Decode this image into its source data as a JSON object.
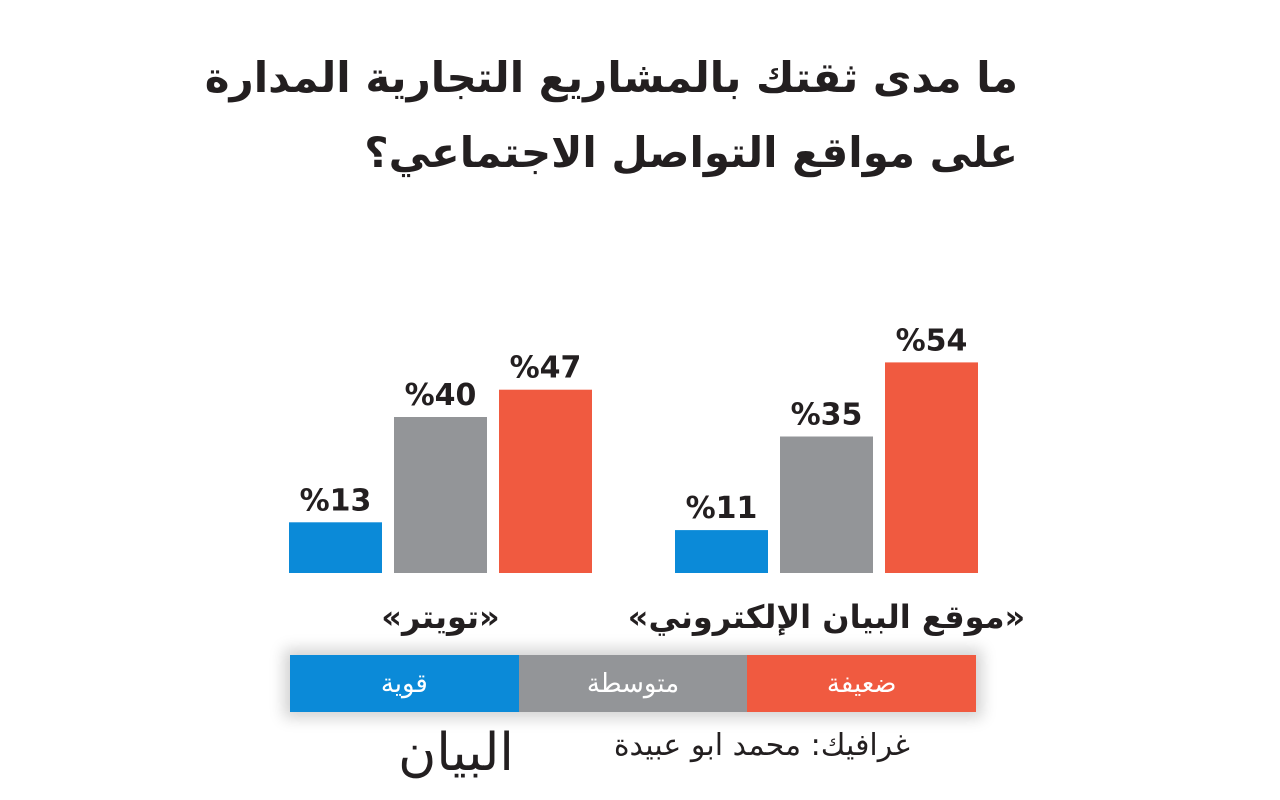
{
  "title": {
    "line1": "ما مدى ثقتك بالمشاريع التجارية المدارة",
    "line2": "على مواقع التواصل الاجتماعي؟"
  },
  "credit": "غرافيك: محمد ابو عبيدة",
  "logo_text": "البيان",
  "colors": {
    "strong": "#0b8ad8",
    "medium": "#939598",
    "weak": "#f05a40"
  },
  "chart_data": {
    "type": "bar",
    "title": "ما مدى ثقتك بالمشاريع التجارية المدارة على مواقع التواصل الاجتماعي؟",
    "categories": [
      "«تويتر»",
      "«موقع البيان الإلكتروني»"
    ],
    "series": [
      {
        "name": "قوية",
        "color": "#0b8ad8",
        "values": [
          13,
          11
        ],
        "labels": [
          "%13",
          "%11"
        ]
      },
      {
        "name": "متوسطة",
        "color": "#939598",
        "values": [
          40,
          35
        ],
        "labels": [
          "%40",
          "%35"
        ]
      },
      {
        "name": "ضعيفة",
        "color": "#f05a40",
        "values": [
          47,
          54
        ],
        "labels": [
          "%47",
          "%54"
        ]
      }
    ],
    "ylim": [
      0,
      100
    ],
    "grid": false,
    "legend": "bottom"
  }
}
